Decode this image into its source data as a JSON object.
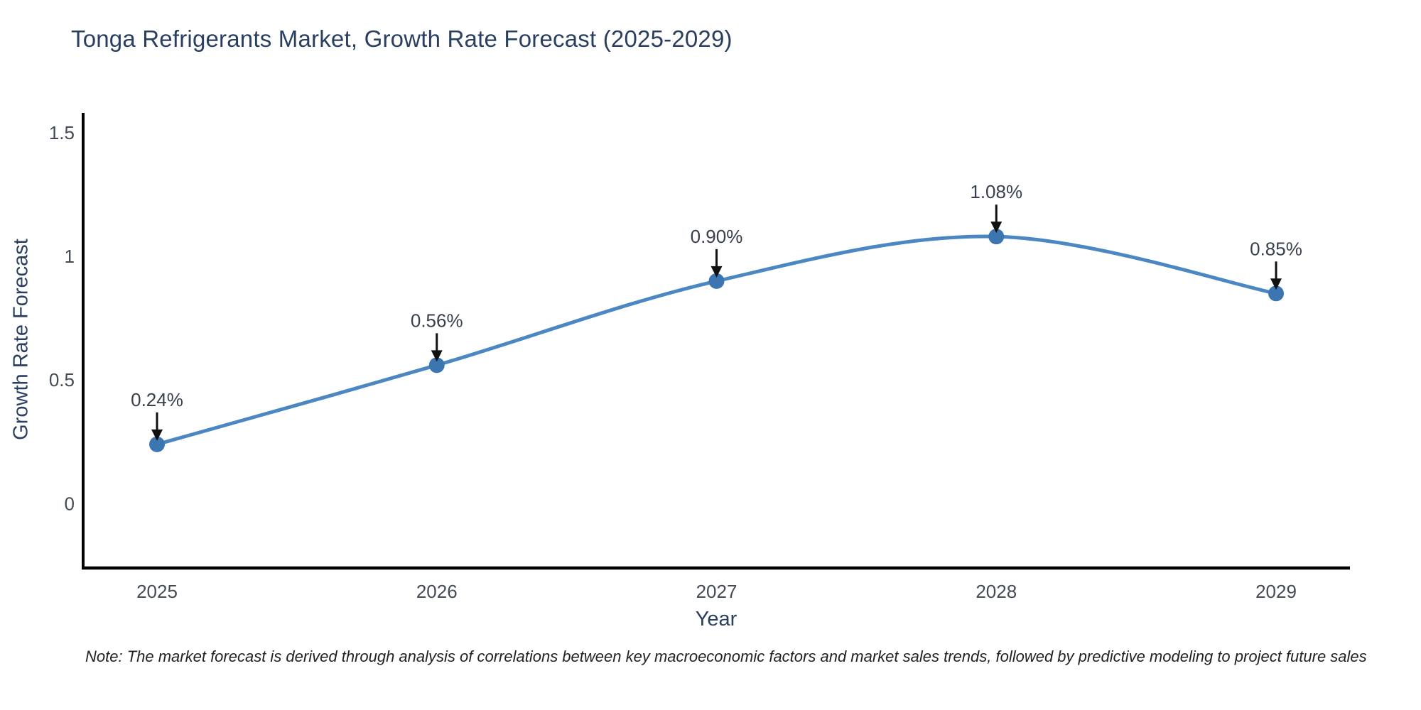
{
  "title": "Tonga Refrigerants Market, Growth Rate Forecast (2025-2029)",
  "note": "Note: The market forecast is derived through analysis of correlations between key macroeconomic factors and market sales trends, followed by predictive modeling to project future sales",
  "chart_data": {
    "type": "line",
    "title": "Tonga Refrigerants Market, Growth Rate Forecast (2025-2029)",
    "xlabel": "Year",
    "ylabel": "Growth Rate Forecast",
    "categories": [
      "2025",
      "2026",
      "2027",
      "2028",
      "2029"
    ],
    "series": [
      {
        "name": "Growth Rate Forecast",
        "values": [
          0.24,
          0.56,
          0.9,
          1.08,
          0.85
        ]
      }
    ],
    "point_labels": [
      "0.24%",
      "0.56%",
      "0.90%",
      "1.08%",
      "0.85%"
    ],
    "yticks": [
      0,
      0.5,
      1,
      1.5
    ],
    "ytick_labels": [
      "0",
      "0.5",
      "1",
      "1.5"
    ],
    "ylim": [
      -0.26,
      1.58
    ],
    "grid": false,
    "legend_position": "none",
    "line_shape": "spline",
    "annotations_style": "value-above-with-down-arrow",
    "colors": {
      "line": "#4b87c3",
      "marker": "#3c76b0",
      "axis": "#000000",
      "tick_text": "#444b57",
      "title_text": "#2a3f5f",
      "annotation_text": "#38404d",
      "annotation_arrow": "#111111",
      "background": "#ffffff"
    }
  }
}
